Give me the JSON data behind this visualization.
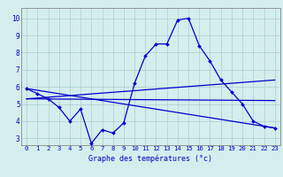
{
  "xlabel": "Graphe des températures (°c)",
  "bg_color": "#d4eeed",
  "line_color": "#0000cc",
  "grid_color": "#aacfcf",
  "x_ticks": [
    0,
    1,
    2,
    3,
    4,
    5,
    6,
    7,
    8,
    9,
    10,
    11,
    12,
    13,
    14,
    15,
    16,
    17,
    18,
    19,
    20,
    21,
    22,
    23
  ],
  "y_ticks": [
    3,
    4,
    5,
    6,
    7,
    8,
    9,
    10
  ],
  "ylim": [
    2.6,
    10.6
  ],
  "xlim": [
    -0.5,
    23.5
  ],
  "curve1_x": [
    0,
    1,
    2,
    3,
    4,
    5,
    6,
    7,
    8,
    9,
    10,
    11,
    12,
    13,
    14,
    15,
    16,
    17,
    18,
    19,
    20,
    21,
    22,
    23
  ],
  "curve1_y": [
    5.9,
    5.6,
    5.3,
    4.8,
    4.0,
    4.7,
    2.7,
    3.5,
    3.3,
    3.9,
    6.2,
    7.8,
    8.5,
    8.5,
    9.9,
    10.0,
    8.4,
    7.5,
    6.4,
    5.7,
    5.0,
    4.0,
    3.7,
    3.6
  ],
  "curve2_x": [
    0,
    23
  ],
  "curve2_y": [
    5.9,
    3.6
  ],
  "curve3_x": [
    0,
    23
  ],
  "curve3_y": [
    5.3,
    5.2
  ],
  "curve4_x": [
    0,
    23
  ],
  "curve4_y": [
    5.3,
    6.4
  ],
  "xlabel_fontsize": 6.0,
  "tick_fontsize": 5.2
}
